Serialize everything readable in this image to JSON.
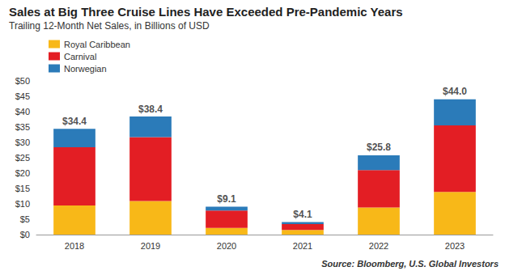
{
  "chart_data": {
    "type": "bar",
    "title": "Sales at Big Three Cruise Lines Have Exceeded Pre-Pandemic Years",
    "subtitle": "Trailing 12-Month Net Sales, in Billions of USD",
    "source": "Source: Bloomberg, U.S. Global Investors",
    "categories": [
      "2018",
      "2019",
      "2020",
      "2021",
      "2022",
      "2023"
    ],
    "series": [
      {
        "name": "Royal Caribbean",
        "color": "#F8B818",
        "values": [
          9.5,
          10.9,
          2.2,
          1.5,
          8.8,
          13.9
        ]
      },
      {
        "name": "Carnival",
        "color": "#E31E24",
        "values": [
          18.9,
          20.8,
          5.6,
          1.9,
          12.2,
          21.6
        ]
      },
      {
        "name": "Norwegian",
        "color": "#2B7BB9",
        "values": [
          6.0,
          6.7,
          1.3,
          0.7,
          4.8,
          8.5
        ]
      }
    ],
    "totals": {
      "values": [
        34.4,
        38.4,
        9.1,
        4.1,
        25.8,
        44.0
      ],
      "value_labels": [
        "$34.4",
        "$38.4",
        "$9.1",
        "$4.1",
        "$25.8",
        "$44.0"
      ]
    },
    "stacked": true,
    "ylim": [
      0,
      50
    ],
    "yticks": [
      {
        "value": 0,
        "label": "$0"
      },
      {
        "value": 5,
        "label": "$5"
      },
      {
        "value": 10,
        "label": "$10"
      },
      {
        "value": 15,
        "label": "$15"
      },
      {
        "value": 20,
        "label": "$20"
      },
      {
        "value": 25,
        "label": "$25"
      },
      {
        "value": 30,
        "label": "$30"
      },
      {
        "value": 35,
        "label": "$35"
      },
      {
        "value": 40,
        "label": "$40"
      },
      {
        "value": 45,
        "label": "$45"
      },
      {
        "value": 50,
        "label": "$50"
      }
    ],
    "grid": false,
    "legend": "top-left"
  }
}
